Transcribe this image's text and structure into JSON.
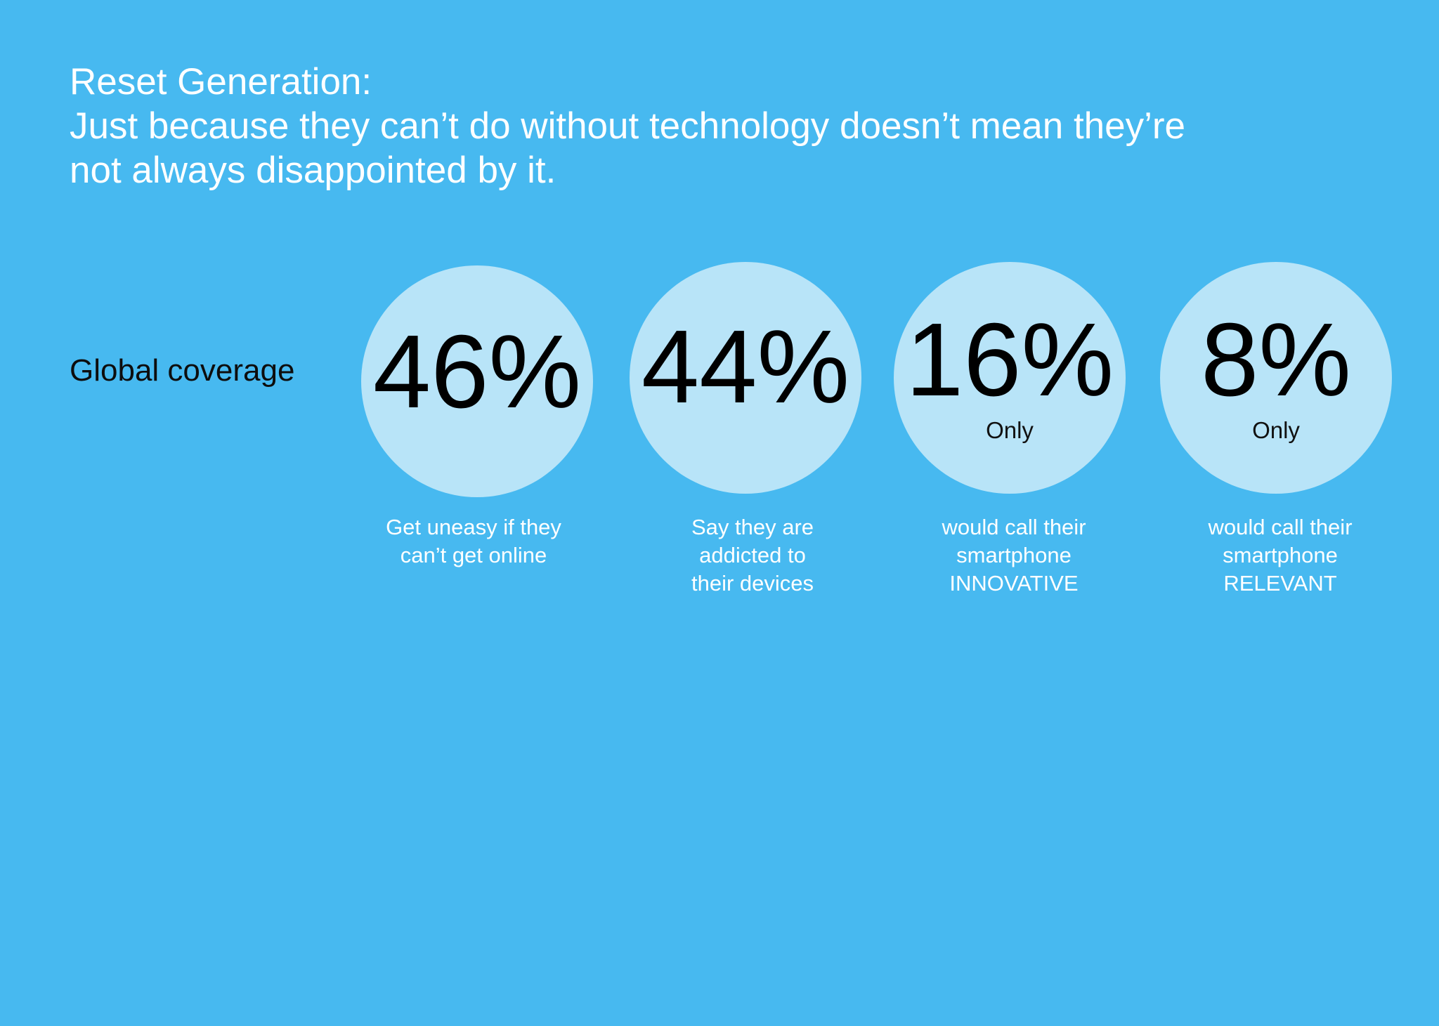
{
  "colors": {
    "background": "#47b9f0",
    "circle": "#b8e4f8",
    "title_text": "#ffffff",
    "value_text": "#000000",
    "caption_text": "#ffffff"
  },
  "title": {
    "lines": [
      "Reset Generation:",
      "Just because they can’t do without technology doesn’t mean they’re",
      "not always disappointed by it."
    ]
  },
  "row_label": "Global coverage",
  "stats": [
    {
      "value": "46%",
      "prefix": "",
      "caption_lines": [
        "Get uneasy if they",
        "can’t get online"
      ]
    },
    {
      "value": "44%",
      "prefix": "",
      "caption_lines": [
        "Say they are",
        "addicted to",
        "their devices"
      ]
    },
    {
      "value": "16%",
      "prefix": "Only",
      "caption_lines": [
        "would call their",
        "smartphone",
        "INNOVATIVE"
      ]
    },
    {
      "value": "8%",
      "prefix": "Only",
      "caption_lines": [
        "would call their",
        "smartphone",
        "RELEVANT"
      ]
    }
  ]
}
